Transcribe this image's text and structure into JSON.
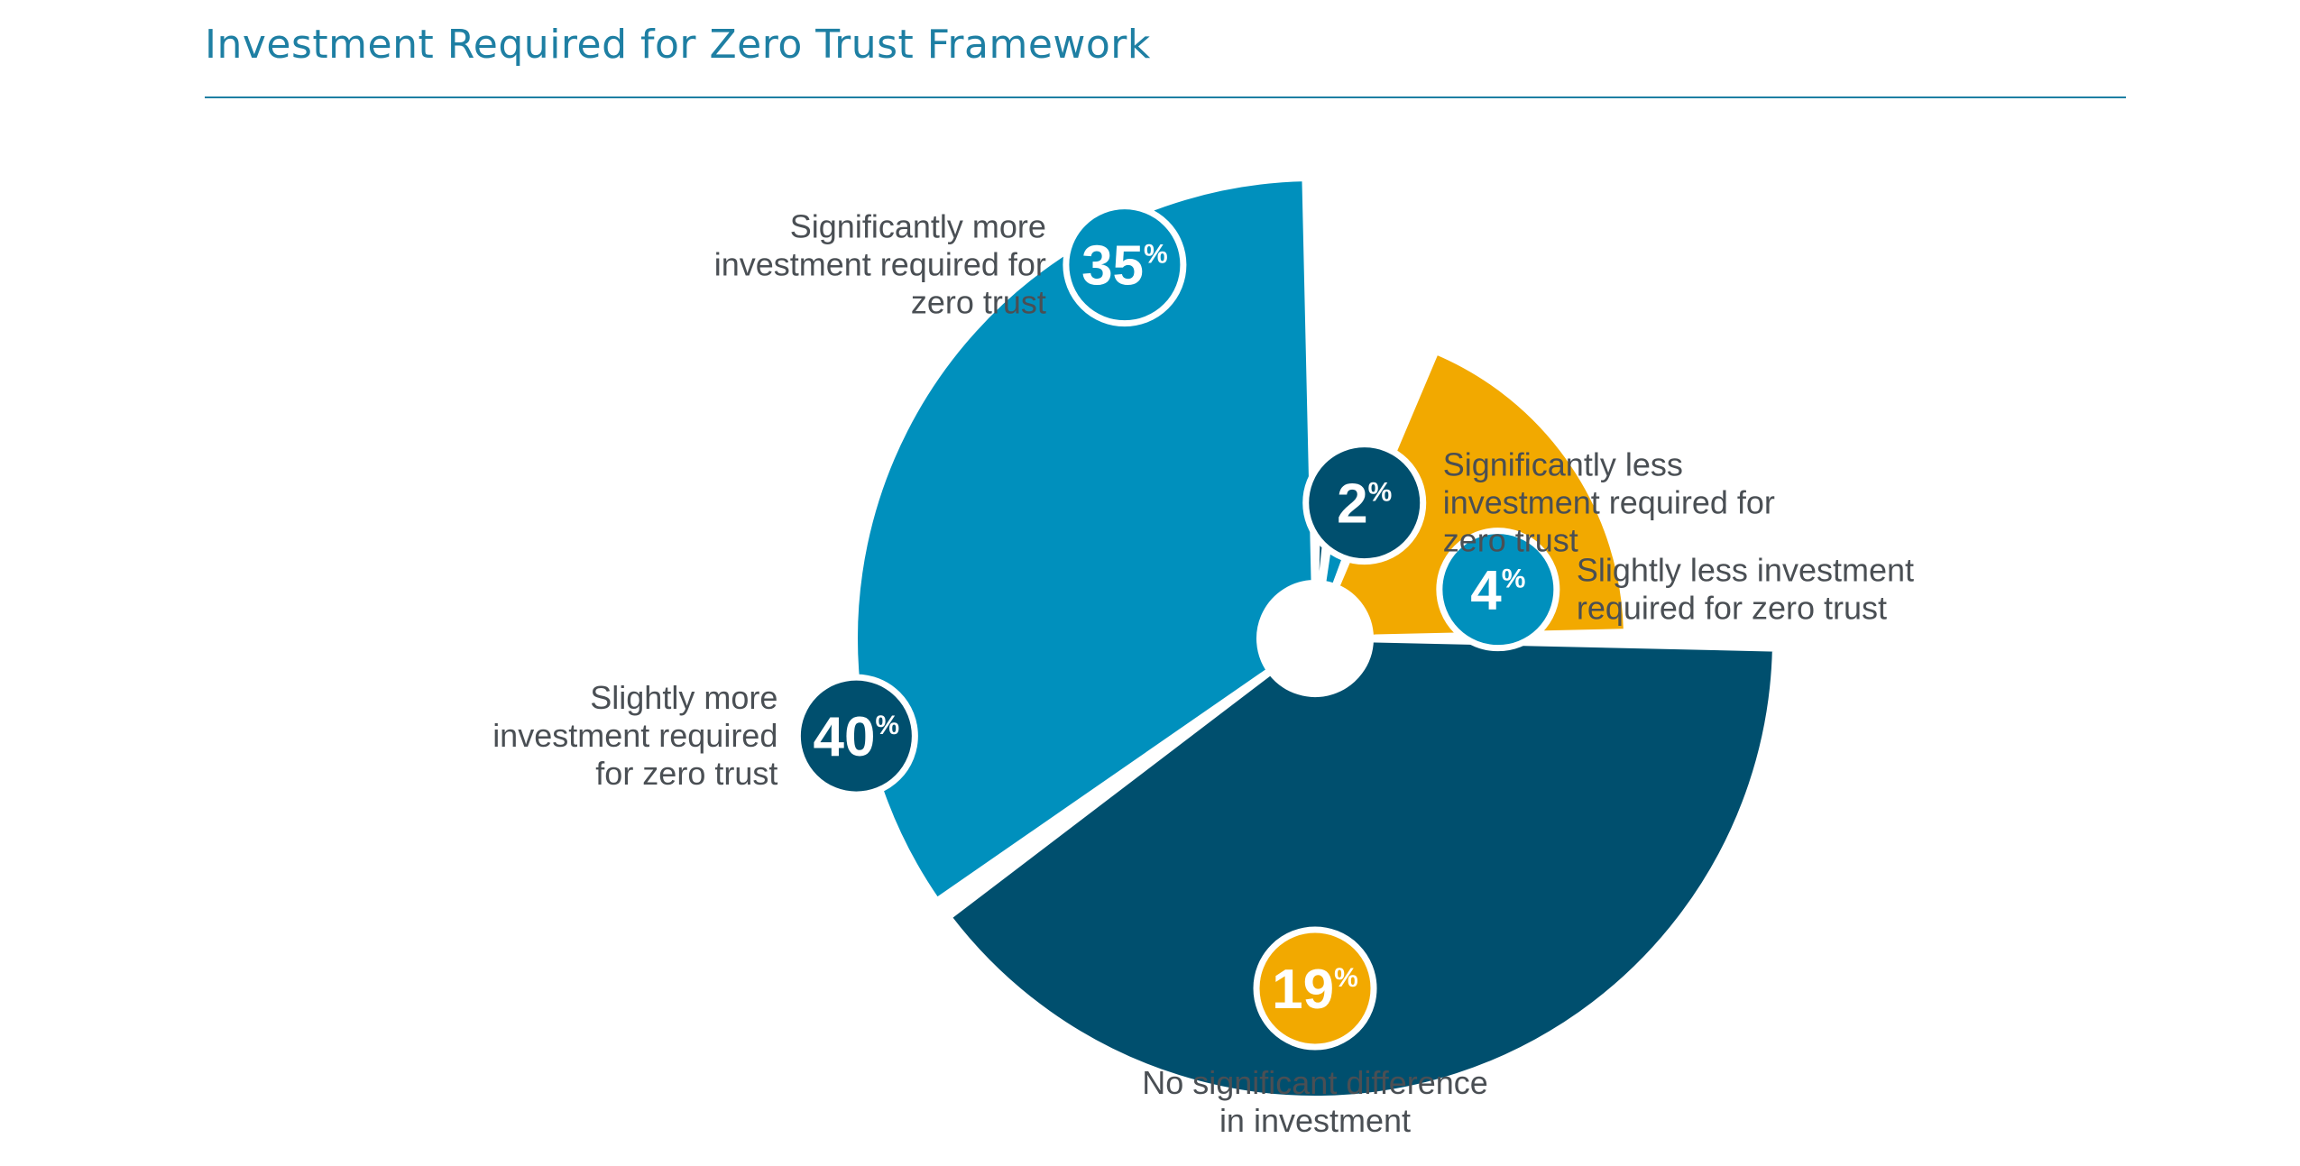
{
  "title": "Investment Required for Zero Trust Framework",
  "chart_data": {
    "type": "pie",
    "title": "Investment Required for Zero Trust Framework",
    "slices": [
      {
        "label_lines": [
          "Significantly less",
          "investment required for",
          "zero trust"
        ],
        "value": 2,
        "badge_number": "2",
        "badge_suffix": "%",
        "color": "#004f6e"
      },
      {
        "label_lines": [
          "Slightly less investment",
          "required for zero trust"
        ],
        "value": 4,
        "badge_number": "4",
        "badge_suffix": "%",
        "color": "#0090bd"
      },
      {
        "label_lines": [
          "No significant difference",
          "in investment"
        ],
        "value": 19,
        "badge_number": "19",
        "badge_suffix": "%",
        "color": "#f2a900"
      },
      {
        "label_lines": [
          "Slightly more",
          "investment required",
          "for zero trust"
        ],
        "value": 40,
        "badge_number": "40",
        "badge_suffix": "%",
        "color": "#004f6e"
      },
      {
        "label_lines": [
          "Significantly more",
          "investment required for",
          "zero trust"
        ],
        "value": 35,
        "badge_number": "35",
        "badge_suffix": "%",
        "color": "#0090bd"
      }
    ]
  }
}
